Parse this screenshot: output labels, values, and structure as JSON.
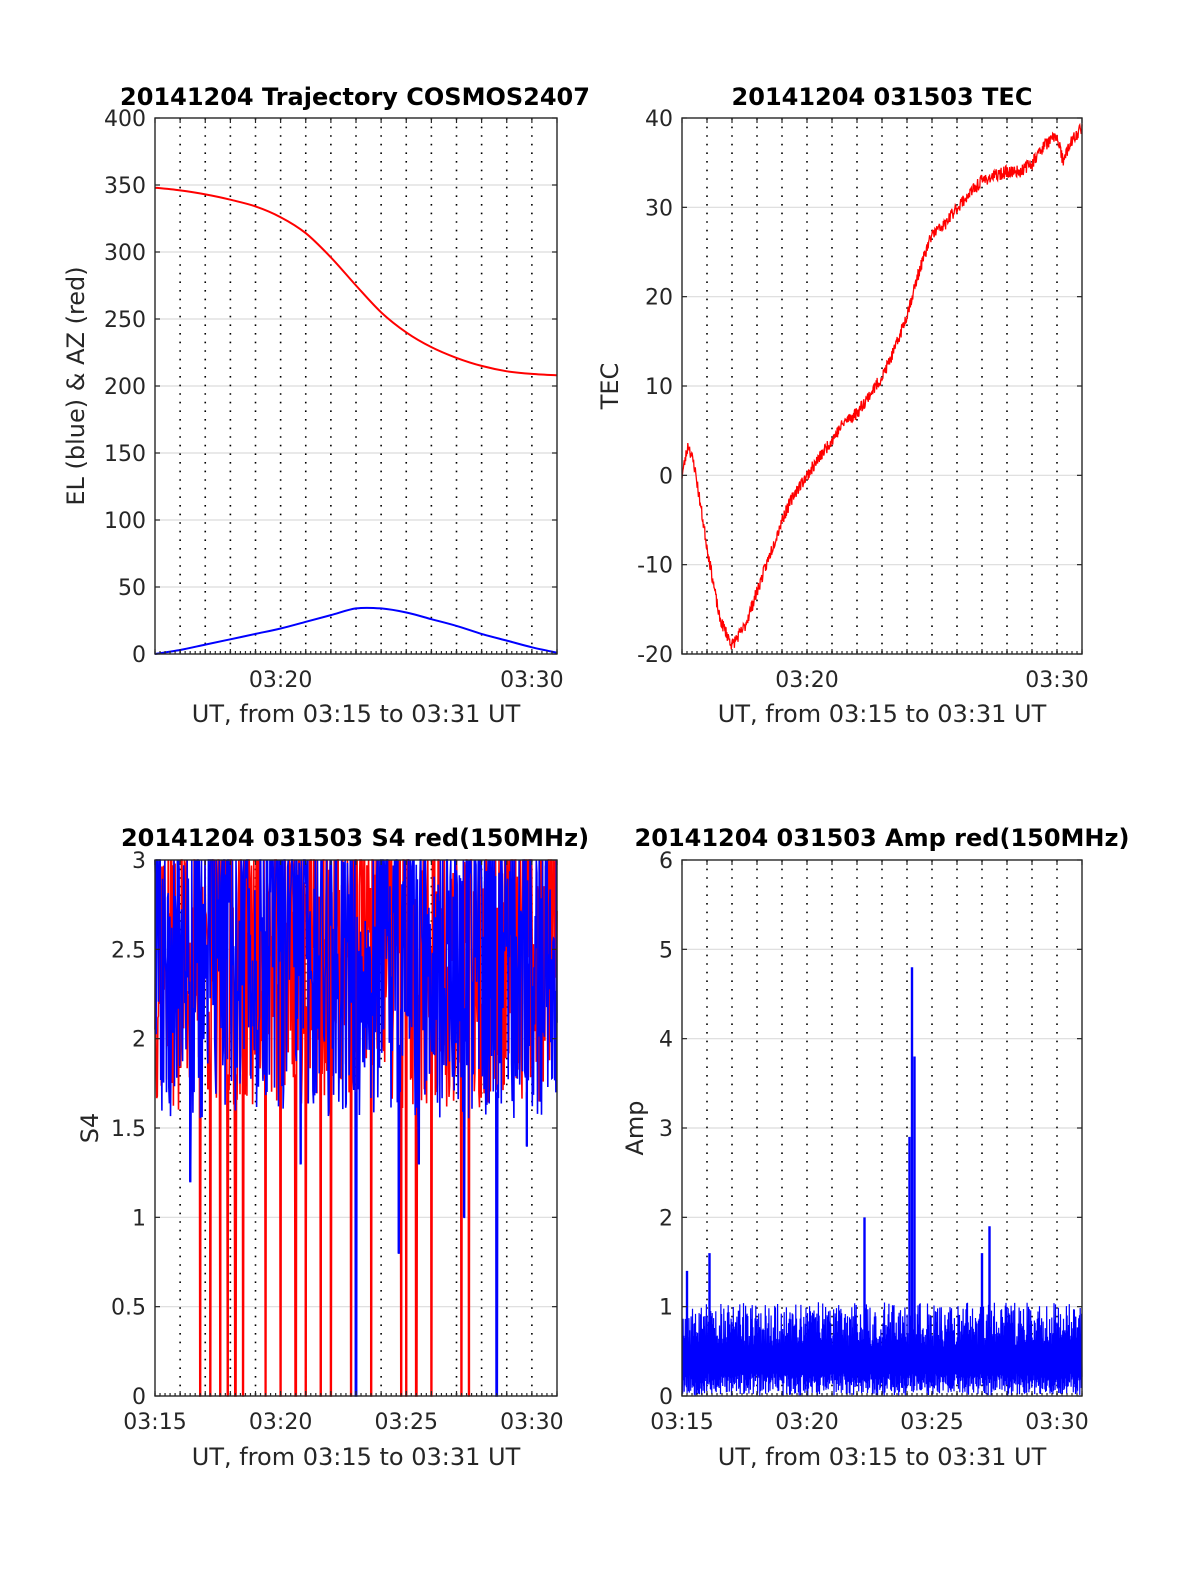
{
  "chart_data": [
    {
      "id": "trajectory",
      "type": "line",
      "title": "20141204 Trajectory COSMOS2407",
      "xlabel": "UT, from 03:15 to 03:31 UT",
      "ylabel": "EL (blue) & AZ (red)",
      "xlim": [
        "03:15",
        "03:31"
      ],
      "ylim": [
        0,
        400
      ],
      "yticks": [
        "0",
        "50",
        "100",
        "150",
        "200",
        "250",
        "300",
        "350",
        "400"
      ],
      "xticks": [
        "03:20",
        "03:30"
      ],
      "x_minor_grid_minutes": 1,
      "colors": {
        "elevation": "#0000ff",
        "azimuth": "#ff0000"
      },
      "series": [
        {
          "color": "#ff0000",
          "x": [
            "03:15",
            "03:16",
            "03:17",
            "03:18",
            "03:19",
            "03:20",
            "03:21",
            "03:22",
            "03:23",
            "03:24",
            "03:25",
            "03:26",
            "03:27",
            "03:28",
            "03:29",
            "03:30",
            "03:31"
          ],
          "values": [
            348,
            346,
            343,
            339,
            334,
            326,
            314,
            296,
            275,
            255,
            240,
            229,
            221,
            215,
            211,
            209,
            208
          ]
        },
        {
          "color": "#0000ff",
          "x": [
            "03:15",
            "03:16",
            "03:17",
            "03:18",
            "03:19",
            "03:20",
            "03:21",
            "03:22",
            "03:23",
            "03:24",
            "03:25",
            "03:26",
            "03:27",
            "03:28",
            "03:29",
            "03:30",
            "03:31"
          ],
          "values": [
            0,
            3,
            7,
            11,
            15,
            19,
            24,
            29,
            34,
            34,
            31,
            26,
            21,
            15,
            10,
            5,
            1
          ]
        }
      ]
    },
    {
      "id": "tec",
      "type": "line",
      "title": "20141204 031503 TEC",
      "xlabel": "UT, from 03:15 to 03:31 UT",
      "ylabel": "TEC",
      "xlim": [
        "03:15",
        "03:31"
      ],
      "ylim": [
        -20,
        40
      ],
      "yticks": [
        "-20",
        "-10",
        "0",
        "10",
        "20",
        "30",
        "40"
      ],
      "xticks": [
        "03:20",
        "03:30"
      ],
      "x_minor_grid_minutes": 1,
      "series": [
        {
          "color": "#ff0000",
          "x": [
            "03:15:00",
            "03:15:15",
            "03:15:30",
            "03:16:00",
            "03:16:30",
            "03:17:00",
            "03:17:30",
            "03:18:00",
            "03:18:30",
            "03:19:00",
            "03:19:30",
            "03:20:00",
            "03:20:30",
            "03:21:00",
            "03:21:30",
            "03:22:00",
            "03:22:30",
            "03:23:00",
            "03:23:30",
            "03:24:00",
            "03:24:30",
            "03:25:00",
            "03:25:30",
            "03:26:00",
            "03:26:30",
            "03:27:00",
            "03:27:30",
            "03:28:00",
            "03:28:30",
            "03:29:00",
            "03:29:30",
            "03:30:00",
            "03:30:15",
            "03:30:30",
            "03:31:00"
          ],
          "values": [
            0,
            3.5,
            1,
            -8,
            -16,
            -19,
            -17,
            -13,
            -9,
            -5,
            -2,
            0,
            2,
            4,
            6,
            7,
            9,
            11,
            14,
            18,
            23,
            27,
            28,
            30,
            31.5,
            33,
            33.5,
            34,
            34,
            35,
            37,
            38,
            35,
            37,
            39
          ]
        }
      ]
    },
    {
      "id": "s4",
      "type": "line",
      "title": "20141204 031503 S4 red(150MHz)",
      "xlabel": "UT, from 03:15 to 03:31 UT",
      "ylabel": "S4",
      "xlim": [
        "03:15",
        "03:31"
      ],
      "ylim": [
        0,
        3
      ],
      "yticks": [
        "0",
        "0.5",
        "1",
        "1.5",
        "2",
        "2.5",
        "3"
      ],
      "xticks": [
        "03:15",
        "03:20",
        "03:25",
        "03:30"
      ],
      "x_minor_grid_minutes": 1,
      "noisy_band": {
        "low": 1.6,
        "high": 3.0
      },
      "red_dropouts_minutes": [
        16.8,
        17.2,
        17.6,
        17.9,
        18.2,
        18.5,
        19.4,
        20.0,
        20.6,
        21.0,
        21.6,
        22.0,
        22.8,
        23.6,
        24.8,
        25.0,
        25.4,
        26.0,
        27.2,
        27.5
      ],
      "blue_dips": [
        {
          "minute": 16.4,
          "value": 1.2
        },
        {
          "minute": 20.8,
          "value": 1.3
        },
        {
          "minute": 23.0,
          "value": 0
        },
        {
          "minute": 24.7,
          "value": 0.8
        },
        {
          "minute": 25.5,
          "value": 1.3
        },
        {
          "minute": 27.3,
          "value": 1.0
        },
        {
          "minute": 28.6,
          "value": 0
        },
        {
          "minute": 29.8,
          "value": 1.4
        }
      ],
      "series": [
        {
          "color": "#ff0000"
        },
        {
          "color": "#0000ff"
        }
      ]
    },
    {
      "id": "amp",
      "type": "line",
      "title": "20141204 031503 Amp red(150MHz)",
      "xlabel": "UT, from 03:15 to 03:31 UT",
      "ylabel": "Amp",
      "xlim": [
        "03:15",
        "03:31"
      ],
      "ylim": [
        0,
        6
      ],
      "yticks": [
        "0",
        "1",
        "2",
        "3",
        "4",
        "5",
        "6"
      ],
      "xticks": [
        "03:15",
        "03:20",
        "03:25",
        "03:30"
      ],
      "x_minor_grid_minutes": 1,
      "noise_band": {
        "low": 0.0,
        "high": 0.9
      },
      "spikes": [
        {
          "minute": 15.2,
          "value": 1.4
        },
        {
          "minute": 16.1,
          "value": 1.6
        },
        {
          "minute": 22.3,
          "value": 2.0
        },
        {
          "minute": 24.1,
          "value": 2.9
        },
        {
          "minute": 24.2,
          "value": 4.8
        },
        {
          "minute": 24.3,
          "value": 3.8
        },
        {
          "minute": 27.0,
          "value": 1.6
        },
        {
          "minute": 27.3,
          "value": 1.9
        }
      ],
      "series": [
        {
          "color": "#0000ff"
        }
      ]
    }
  ]
}
